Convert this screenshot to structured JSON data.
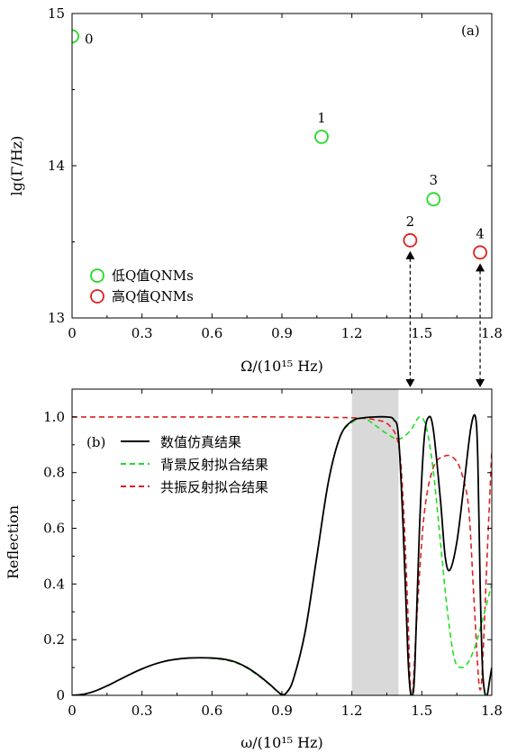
{
  "chart_data": [
    {
      "panel": "(a)",
      "type": "scatter",
      "xlabel": "Ω/(10¹⁵ Hz)",
      "ylabel": "lg(Γ/Hz)",
      "xlim": [
        0,
        1.8
      ],
      "ylim": [
        13,
        15
      ],
      "xticks": [
        "0",
        "0.3",
        "0.6",
        "0.9",
        "1.2",
        "1.5",
        "1.8"
      ],
      "yticks": [
        "13",
        "14",
        "15"
      ],
      "legend_position": "bottom-left",
      "series": [
        {
          "name": "低Q值QNMs",
          "color": "#22dd22",
          "points": [
            {
              "label": "0",
              "x": 0.0,
              "y": 14.85
            },
            {
              "label": "1",
              "x": 1.07,
              "y": 14.19
            },
            {
              "label": "3",
              "x": 1.55,
              "y": 13.78
            }
          ]
        },
        {
          "name": "高Q值QNMs",
          "color": "#dd2222",
          "points": [
            {
              "label": "2",
              "x": 1.45,
              "y": 13.51
            },
            {
              "label": "4",
              "x": 1.75,
              "y": 13.43
            }
          ]
        }
      ]
    },
    {
      "panel": "(b)",
      "type": "line",
      "xlabel": "ω/(10¹⁵ Hz)",
      "ylabel": "Reflection",
      "xlim": [
        0,
        1.8
      ],
      "ylim": [
        0,
        1.1
      ],
      "xticks": [
        "0",
        "0.3",
        "0.6",
        "0.9",
        "1.2",
        "1.5",
        "1.8"
      ],
      "yticks": [
        "0",
        "0.2",
        "0.4",
        "0.6",
        "0.8",
        "1.0"
      ],
      "shaded_band": [
        1.2,
        1.4
      ],
      "legend_position": "top-left",
      "series": [
        {
          "name": "数值仿真结果",
          "color": "#000000",
          "style": "solid",
          "points": [
            [
              0,
              0
            ],
            [
              0.05,
              0.004
            ],
            [
              0.1,
              0.016
            ],
            [
              0.15,
              0.034
            ],
            [
              0.2,
              0.055
            ],
            [
              0.25,
              0.076
            ],
            [
              0.3,
              0.095
            ],
            [
              0.35,
              0.111
            ],
            [
              0.4,
              0.123
            ],
            [
              0.45,
              0.13
            ],
            [
              0.5,
              0.134
            ],
            [
              0.55,
              0.135
            ],
            [
              0.6,
              0.134
            ],
            [
              0.65,
              0.13
            ],
            [
              0.7,
              0.12
            ],
            [
              0.75,
              0.1
            ],
            [
              0.8,
              0.072
            ],
            [
              0.85,
              0.038
            ],
            [
              0.88,
              0.015
            ],
            [
              0.9,
              0.003
            ],
            [
              0.92,
              0.01
            ],
            [
              0.95,
              0.06
            ],
            [
              1.0,
              0.23
            ],
            [
              1.05,
              0.5
            ],
            [
              1.1,
              0.77
            ],
            [
              1.15,
              0.93
            ],
            [
              1.2,
              0.985
            ],
            [
              1.25,
              0.997
            ],
            [
              1.3,
              1.0
            ],
            [
              1.35,
              1.0
            ],
            [
              1.38,
              0.99
            ],
            [
              1.4,
              0.93
            ],
            [
              1.42,
              0.6
            ],
            [
              1.44,
              0.15
            ],
            [
              1.45,
              0.02
            ],
            [
              1.46,
              0.0
            ],
            [
              1.47,
              0.1
            ],
            [
              1.49,
              0.6
            ],
            [
              1.51,
              0.92
            ],
            [
              1.53,
              1.0
            ],
            [
              1.55,
              0.95
            ],
            [
              1.58,
              0.7
            ],
            [
              1.6,
              0.5
            ],
            [
              1.62,
              0.45
            ],
            [
              1.65,
              0.55
            ],
            [
              1.68,
              0.75
            ],
            [
              1.71,
              0.96
            ],
            [
              1.73,
              1.0
            ],
            [
              1.74,
              0.85
            ],
            [
              1.75,
              0.4
            ],
            [
              1.76,
              0.1
            ],
            [
              1.77,
              0.01
            ],
            [
              1.78,
              0.0
            ],
            [
              1.79,
              0.05
            ],
            [
              1.8,
              0.1
            ]
          ]
        },
        {
          "name": "背景反射拟合结果",
          "color": "#22dd22",
          "style": "dashed",
          "points": [
            [
              0,
              0
            ],
            [
              0.05,
              0.004
            ],
            [
              0.1,
              0.016
            ],
            [
              0.15,
              0.034
            ],
            [
              0.2,
              0.055
            ],
            [
              0.25,
              0.076
            ],
            [
              0.3,
              0.095
            ],
            [
              0.35,
              0.111
            ],
            [
              0.4,
              0.123
            ],
            [
              0.45,
              0.13
            ],
            [
              0.5,
              0.134
            ],
            [
              0.55,
              0.135
            ],
            [
              0.6,
              0.133
            ],
            [
              0.65,
              0.128
            ],
            [
              0.7,
              0.118
            ],
            [
              0.75,
              0.098
            ],
            [
              0.8,
              0.07
            ],
            [
              0.85,
              0.036
            ],
            [
              0.88,
              0.014
            ],
            [
              0.9,
              0.003
            ],
            [
              0.92,
              0.01
            ],
            [
              0.95,
              0.06
            ],
            [
              1.0,
              0.23
            ],
            [
              1.05,
              0.5
            ],
            [
              1.1,
              0.77
            ],
            [
              1.15,
              0.93
            ],
            [
              1.2,
              0.98
            ],
            [
              1.25,
              0.995
            ],
            [
              1.3,
              0.97
            ],
            [
              1.35,
              0.94
            ],
            [
              1.4,
              0.92
            ],
            [
              1.45,
              0.95
            ],
            [
              1.49,
              1.0
            ],
            [
              1.52,
              0.96
            ],
            [
              1.55,
              0.8
            ],
            [
              1.58,
              0.55
            ],
            [
              1.61,
              0.3
            ],
            [
              1.64,
              0.13
            ],
            [
              1.67,
              0.1
            ],
            [
              1.7,
              0.12
            ],
            [
              1.73,
              0.18
            ],
            [
              1.76,
              0.27
            ],
            [
              1.8,
              0.4
            ]
          ]
        },
        {
          "name": "共振反射拟合结果",
          "color": "#dd2222",
          "style": "dashed",
          "points": [
            [
              0,
              1.0
            ],
            [
              0.3,
              1.0
            ],
            [
              0.6,
              1.0
            ],
            [
              0.9,
              1.0
            ],
            [
              1.2,
              0.997
            ],
            [
              1.3,
              0.99
            ],
            [
              1.36,
              0.97
            ],
            [
              1.4,
              0.9
            ],
            [
              1.42,
              0.7
            ],
            [
              1.44,
              0.3
            ],
            [
              1.45,
              0.05
            ],
            [
              1.46,
              0.0
            ],
            [
              1.48,
              0.3
            ],
            [
              1.51,
              0.65
            ],
            [
              1.55,
              0.82
            ],
            [
              1.6,
              0.86
            ],
            [
              1.64,
              0.85
            ],
            [
              1.67,
              0.8
            ],
            [
              1.7,
              0.68
            ],
            [
              1.72,
              0.4
            ],
            [
              1.74,
              0.1
            ],
            [
              1.75,
              0.02
            ],
            [
              1.76,
              0.1
            ],
            [
              1.78,
              0.5
            ],
            [
              1.8,
              0.88
            ]
          ]
        }
      ]
    }
  ]
}
